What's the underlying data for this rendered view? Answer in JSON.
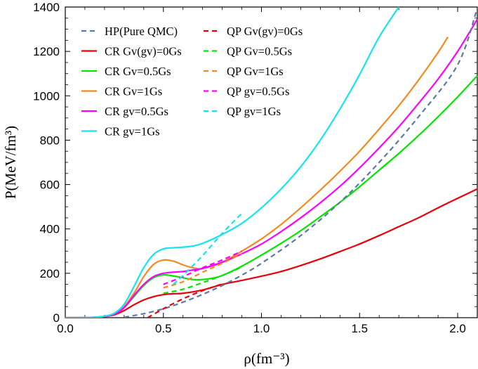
{
  "chart_data": {
    "type": "line",
    "title": "",
    "xlabel": "ρ(fm⁻³)",
    "ylabel": "P(MeV/fm³)",
    "xlim": [
      0,
      2.1
    ],
    "ylim": [
      0,
      1400
    ],
    "x_ticks": [
      "0.0",
      "0.5",
      "1.0",
      "1.5",
      "2.0"
    ],
    "y_ticks": [
      "0",
      "200",
      "400",
      "600",
      "800",
      "1000",
      "1200",
      "1400"
    ],
    "legend_position": "top-left",
    "series": [
      {
        "name": "HP(Pure QMC)",
        "color": "#5a79a6",
        "dash": true,
        "x": [
          0.3,
          0.4,
          0.5,
          0.6,
          0.7,
          0.8,
          0.9,
          1.0,
          1.2,
          1.4,
          1.6,
          1.8,
          2.0,
          2.1
        ],
        "y": [
          2,
          18,
          40,
          70,
          105,
          145,
          192,
          245,
          370,
          520,
          700,
          905,
          1140,
          1395
        ]
      },
      {
        "name": "CR Gv(gv)=0Gs",
        "color": "#e8000b",
        "dash": false,
        "x": [
          0.0,
          0.1,
          0.15,
          0.2,
          0.25,
          0.3,
          0.35,
          0.4,
          0.45,
          0.5,
          0.55,
          0.6,
          0.7,
          0.8,
          0.9,
          1.0,
          1.1,
          1.2,
          1.3,
          1.4,
          1.5,
          1.6,
          1.7,
          1.8,
          1.9,
          2.0,
          2.1
        ],
        "y": [
          0,
          0.5,
          2,
          5,
          13,
          32,
          58,
          80,
          95,
          104,
          108,
          110,
          125,
          150,
          168,
          187,
          208,
          235,
          265,
          298,
          332,
          370,
          410,
          450,
          495,
          538,
          580
        ]
      },
      {
        "name": "CR Gv=0.5Gs",
        "color": "#00e600",
        "dash": false,
        "x": [
          0.0,
          0.1,
          0.15,
          0.2,
          0.25,
          0.3,
          0.35,
          0.4,
          0.45,
          0.5,
          0.55,
          0.6,
          0.65,
          0.7,
          0.75,
          0.8,
          0.9,
          1.0,
          1.1,
          1.2,
          1.3,
          1.4,
          1.5,
          1.6,
          1.7,
          1.8,
          1.9,
          2.0,
          2.1
        ],
        "y": [
          0,
          0.5,
          2,
          6,
          16,
          45,
          95,
          145,
          180,
          193,
          188,
          180,
          172,
          172,
          178,
          190,
          232,
          282,
          335,
          392,
          455,
          520,
          590,
          665,
          740,
          820,
          905,
          995,
          1090
        ]
      },
      {
        "name": "CR Gv=1Gs",
        "color": "#f28a1e",
        "dash": false,
        "x": [
          0.0,
          0.1,
          0.15,
          0.2,
          0.25,
          0.3,
          0.35,
          0.4,
          0.45,
          0.5,
          0.55,
          0.6,
          0.65,
          0.7,
          0.8,
          0.9,
          1.0,
          1.1,
          1.2,
          1.3,
          1.4,
          1.5,
          1.6,
          1.7,
          1.8,
          1.9,
          1.95
        ],
        "y": [
          0,
          0.5,
          2,
          6,
          17,
          50,
          110,
          185,
          240,
          260,
          255,
          238,
          225,
          222,
          250,
          300,
          355,
          420,
          495,
          575,
          660,
          750,
          850,
          955,
          1070,
          1195,
          1265
        ]
      },
      {
        "name": "CR gv=0.5Gs",
        "color": "#ff00ff",
        "dash": false,
        "x": [
          0.0,
          0.1,
          0.15,
          0.2,
          0.25,
          0.3,
          0.35,
          0.4,
          0.45,
          0.5,
          0.55,
          0.6,
          0.65,
          0.7,
          0.8,
          0.9,
          1.0,
          1.1,
          1.2,
          1.3,
          1.4,
          1.5,
          1.6,
          1.7,
          1.8,
          1.9,
          2.0,
          2.1
        ],
        "y": [
          0,
          0.5,
          2,
          6,
          16,
          45,
          100,
          150,
          185,
          200,
          205,
          208,
          215,
          222,
          250,
          288,
          332,
          388,
          450,
          518,
          592,
          675,
          765,
          860,
          965,
          1075,
          1200,
          1345
        ]
      },
      {
        "name": "CR gv=1Gs",
        "color": "#14e4f0",
        "dash": false,
        "x": [
          0.0,
          0.1,
          0.15,
          0.2,
          0.25,
          0.3,
          0.35,
          0.4,
          0.45,
          0.5,
          0.55,
          0.6,
          0.65,
          0.7,
          0.8,
          0.9,
          1.0,
          1.1,
          1.2,
          1.3,
          1.4,
          1.5,
          1.6,
          1.7
        ],
        "y": [
          0,
          0.5,
          2,
          7,
          20,
          60,
          140,
          225,
          285,
          310,
          315,
          318,
          323,
          335,
          375,
          425,
          495,
          580,
          680,
          800,
          940,
          1095,
          1265,
          1400
        ]
      },
      {
        "name": "QP Gv(gv)=0Gs",
        "color": "#e8000b",
        "dash": true,
        "x": [
          0.42,
          0.5,
          0.6,
          0.7,
          0.8
        ],
        "y": [
          0,
          40,
          85,
          122,
          152
        ]
      },
      {
        "name": "QP Gv=0.5Gs",
        "color": "#00e600",
        "dash": true,
        "x": [
          0.5,
          0.6,
          0.7,
          0.8,
          0.9
        ],
        "y": [
          110,
          128,
          158,
          190,
          228
        ]
      },
      {
        "name": "QP Gv=1Gs",
        "color": "#f28a1e",
        "dash": true,
        "x": [
          0.5,
          0.6,
          0.7,
          0.8,
          0.9
        ],
        "y": [
          135,
          162,
          205,
          245,
          288
        ]
      },
      {
        "name": "QP gv=0.5Gs",
        "color": "#ff00ff",
        "dash": true,
        "x": [
          0.5,
          0.6,
          0.7,
          0.8,
          0.9
        ],
        "y": [
          150,
          185,
          225,
          260,
          300
        ]
      },
      {
        "name": "QP gv=1Gs",
        "color": "#14e4f0",
        "dash": true,
        "x": [
          0.55,
          0.6,
          0.7,
          0.8,
          0.9
        ],
        "y": [
          150,
          190,
          280,
          380,
          470
        ]
      }
    ]
  }
}
